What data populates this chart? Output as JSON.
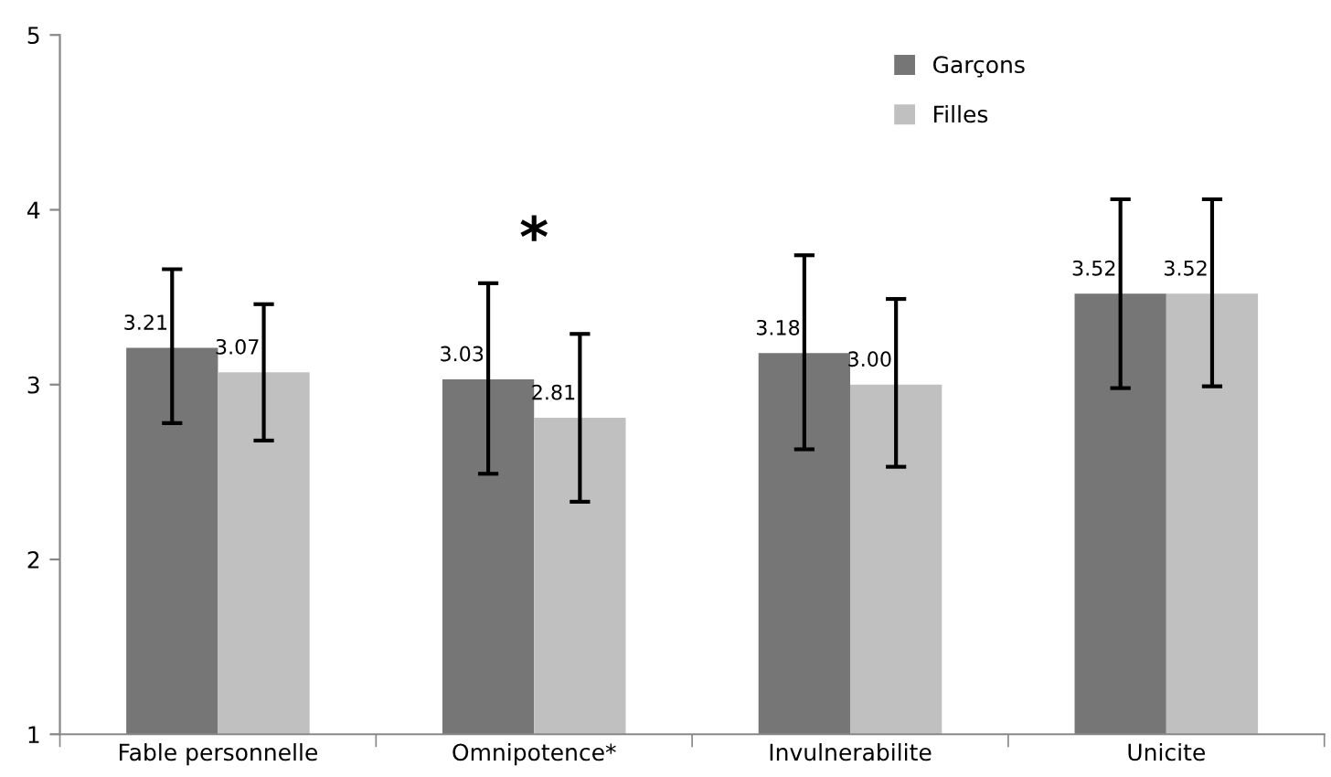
{
  "chart_data": {
    "type": "bar",
    "categories": [
      "Fable personnelle",
      "Omnipotence*",
      "Invulnerabilite",
      "Unicite"
    ],
    "series": [
      {
        "name": "Garçons",
        "color": "#767676",
        "values": [
          3.21,
          3.03,
          3.18,
          3.52
        ],
        "value_labels": [
          "3.21",
          "3.03",
          "3.18",
          "3.52"
        ],
        "errors": [
          [
            2.78,
            3.66
          ],
          [
            2.49,
            3.58
          ],
          [
            2.63,
            3.74
          ],
          [
            2.98,
            4.06
          ]
        ]
      },
      {
        "name": "Filles",
        "color": "#c0c0c0",
        "values": [
          3.07,
          2.81,
          3.0,
          3.52
        ],
        "value_labels": [
          "3.07",
          "2.81",
          "3.00",
          "3.52"
        ],
        "errors": [
          [
            2.68,
            3.46
          ],
          [
            2.33,
            3.29
          ],
          [
            2.53,
            3.49
          ],
          [
            2.99,
            4.06
          ]
        ]
      }
    ],
    "ylim": [
      1,
      5
    ],
    "yticks": [
      1,
      2,
      3,
      4,
      5
    ],
    "grid": false,
    "legend": "top right",
    "annotations": [
      "*"
    ]
  }
}
